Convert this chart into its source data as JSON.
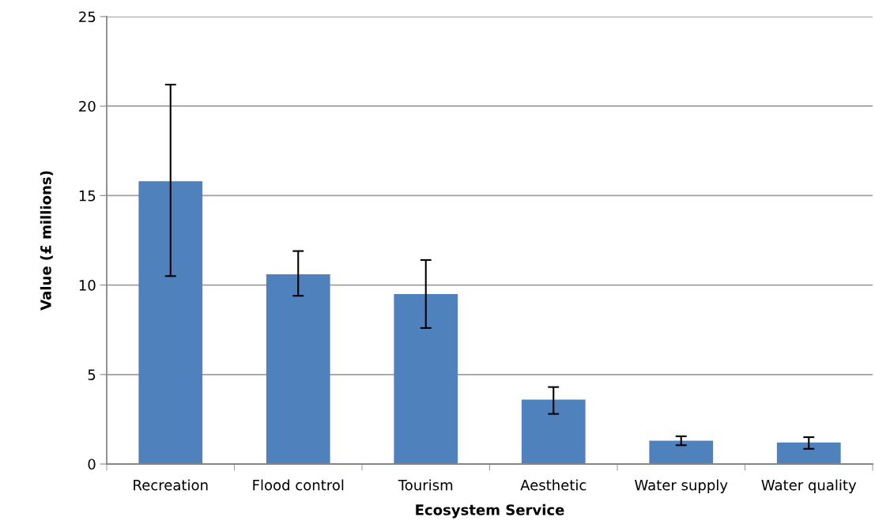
{
  "chart_data": {
    "type": "bar",
    "categories": [
      "Recreation",
      "Flood control",
      "Tourism",
      "Aesthetic",
      "Water supply",
      "Water quality"
    ],
    "values": [
      15.8,
      10.6,
      9.5,
      3.6,
      1.3,
      1.2
    ],
    "errors": [
      [
        10.5,
        21.2
      ],
      [
        9.4,
        11.9
      ],
      [
        7.6,
        11.4
      ],
      [
        2.8,
        4.3
      ],
      [
        1.05,
        1.55
      ],
      [
        0.85,
        1.5
      ]
    ],
    "color": "#4f81bd",
    "xlabel": "Ecosystem Service",
    "ylabel": "Value (£ millions)",
    "ylim": [
      0,
      25
    ],
    "yticks": [
      0,
      5,
      10,
      15,
      20,
      25
    ],
    "grid": "y"
  }
}
